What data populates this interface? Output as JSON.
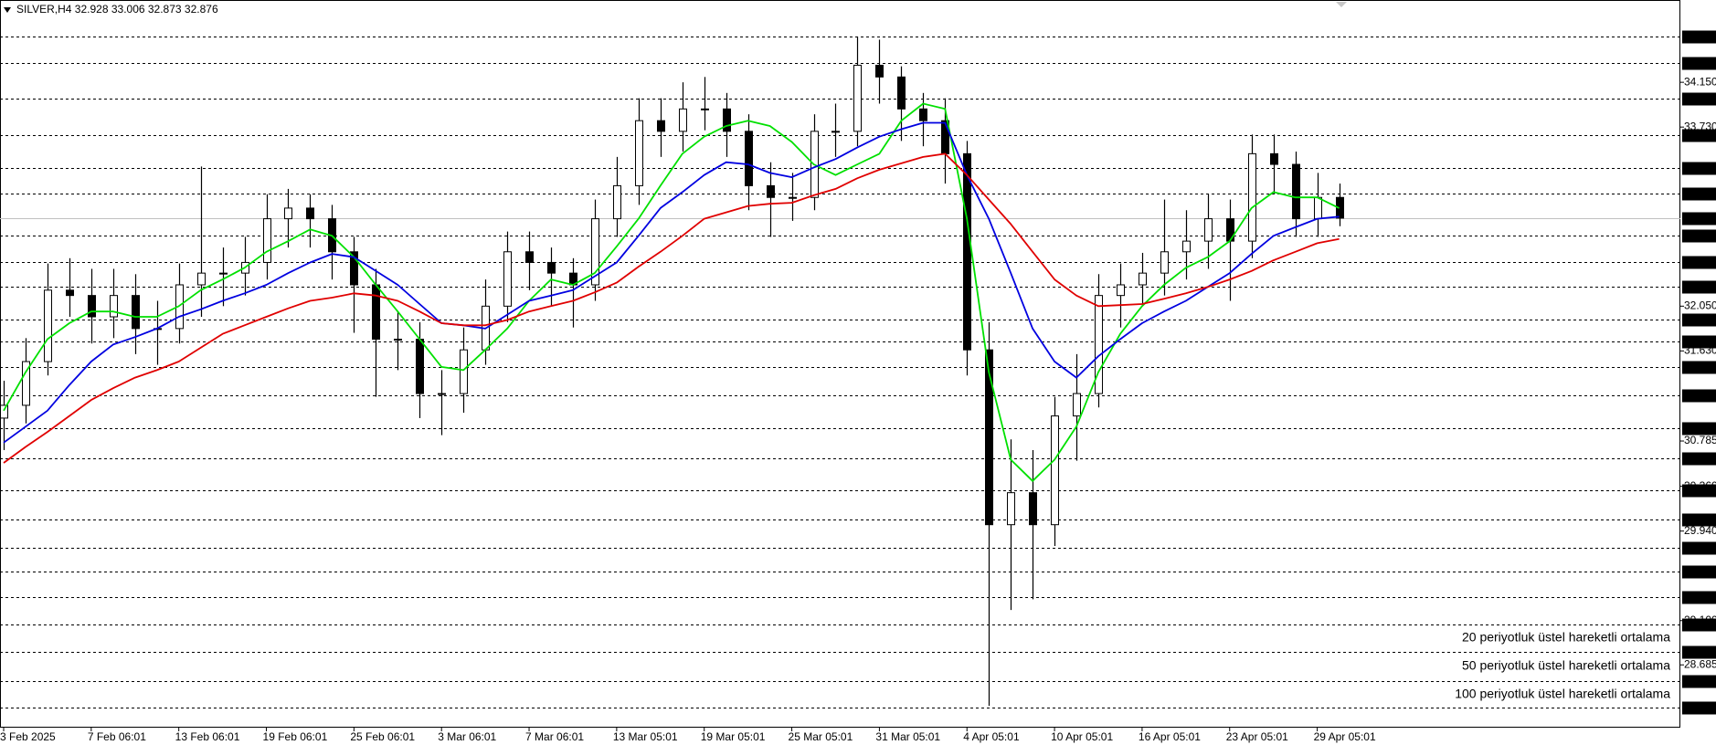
{
  "chart_data": {
    "type": "candlestick",
    "title": "SILVER,H4  32.928 33.006 32.873 32.876",
    "categories": [
      "3 Feb 2025",
      null,
      null,
      null,
      "7 Feb 06:01",
      null,
      null,
      null,
      "13 Feb 06:01",
      null,
      null,
      null,
      "19 Feb 06:01",
      null,
      null,
      null,
      "25 Feb 06:01",
      null,
      null,
      null,
      "3 Mar 06:01",
      null,
      null,
      null,
      "7 Mar 06:01",
      null,
      null,
      null,
      "13 Mar 05:01",
      null,
      null,
      null,
      "19 Mar 05:01",
      null,
      null,
      null,
      "25 Mar 05:01",
      null,
      null,
      null,
      "31 Mar 05:01",
      null,
      null,
      null,
      "4 Apr 05:01",
      null,
      null,
      null,
      "10 Apr 05:01",
      null,
      null,
      null,
      "16 Apr 05:01",
      null,
      null,
      null,
      "23 Apr 05:01",
      null,
      null,
      null,
      "29 Apr 05:01",
      null
    ],
    "candles": {
      "open": [
        31.0,
        31.12,
        31.53,
        32.2,
        32.15,
        31.95,
        32.15,
        31.84,
        31.84,
        32.25,
        32.36,
        32.36,
        32.46,
        32.87,
        32.97,
        32.87,
        32.56,
        32.25,
        31.74,
        31.74,
        31.23,
        31.23,
        31.64,
        32.05,
        32.56,
        32.46,
        32.36,
        32.25,
        32.87,
        33.18,
        33.79,
        33.69,
        33.9,
        33.9,
        33.69,
        33.18,
        33.07,
        33.07,
        33.69,
        33.69,
        34.31,
        34.2,
        33.9,
        33.79,
        33.48,
        31.64,
        30.0,
        30.3,
        30.0,
        31.02,
        31.23,
        32.15,
        32.25,
        32.36,
        32.56,
        32.66,
        32.87,
        32.66,
        33.48,
        33.38,
        32.87,
        33.07
      ],
      "high": [
        31.35,
        31.75,
        32.45,
        32.5,
        32.4,
        32.4,
        32.35,
        32.1,
        32.45,
        33.36,
        32.6,
        32.7,
        33.1,
        33.15,
        33.1,
        33.0,
        32.7,
        32.4,
        32.0,
        31.9,
        31.45,
        31.85,
        32.3,
        32.75,
        32.75,
        32.6,
        32.5,
        33.05,
        33.45,
        34.0,
        34.0,
        34.15,
        34.2,
        34.05,
        33.85,
        33.4,
        33.3,
        33.85,
        33.95,
        34.58,
        34.55,
        34.3,
        34.05,
        34.0,
        33.6,
        31.9,
        30.8,
        30.7,
        31.2,
        31.6,
        32.35,
        32.45,
        32.55,
        33.05,
        32.95,
        33.1,
        33.05,
        33.66,
        33.66,
        33.5,
        33.3,
        33.2
      ],
      "low": [
        30.7,
        30.95,
        31.4,
        31.95,
        31.7,
        31.75,
        31.6,
        31.5,
        31.7,
        31.95,
        32.05,
        32.15,
        32.3,
        32.6,
        32.6,
        32.3,
        31.8,
        31.2,
        31.45,
        31.0,
        30.84,
        31.05,
        31.5,
        31.9,
        32.2,
        32.05,
        31.85,
        32.1,
        32.7,
        33.0,
        33.45,
        33.5,
        33.7,
        33.45,
        32.95,
        32.7,
        32.85,
        32.95,
        33.45,
        33.55,
        33.95,
        33.6,
        33.55,
        33.2,
        31.4,
        28.3,
        29.2,
        29.3,
        29.8,
        30.6,
        31.1,
        31.85,
        32.05,
        32.15,
        32.3,
        32.4,
        32.1,
        32.5,
        33.1,
        32.7,
        32.7,
        32.8
      ],
      "close": [
        31.12,
        31.53,
        32.2,
        32.15,
        31.95,
        32.15,
        31.84,
        31.84,
        32.25,
        32.36,
        32.36,
        32.46,
        32.87,
        32.97,
        32.87,
        32.56,
        32.25,
        31.74,
        31.74,
        31.23,
        31.23,
        31.64,
        32.05,
        32.56,
        32.46,
        32.36,
        32.25,
        32.87,
        33.18,
        33.79,
        33.69,
        33.9,
        33.9,
        33.69,
        33.18,
        33.07,
        33.07,
        33.69,
        33.69,
        34.31,
        34.2,
        33.9,
        33.79,
        33.48,
        31.64,
        30.0,
        30.3,
        30.0,
        31.02,
        31.23,
        32.15,
        32.25,
        32.36,
        32.56,
        32.66,
        32.87,
        32.66,
        33.48,
        33.38,
        32.87,
        33.07,
        32.876
      ]
    },
    "series": [
      {
        "name": "20 periyotluk üstel hareketli ortalama",
        "color": "#00e000",
        "values": [
          31.07,
          31.43,
          31.74,
          31.89,
          32.0,
          32.0,
          31.95,
          31.95,
          32.05,
          32.2,
          32.3,
          32.41,
          32.56,
          32.66,
          32.77,
          32.71,
          32.51,
          32.25,
          32.0,
          31.74,
          31.48,
          31.45,
          31.64,
          31.84,
          32.1,
          32.3,
          32.25,
          32.36,
          32.61,
          32.87,
          33.18,
          33.48,
          33.64,
          33.74,
          33.79,
          33.74,
          33.59,
          33.38,
          33.28,
          33.38,
          33.48,
          33.79,
          33.95,
          33.9,
          32.87,
          31.43,
          30.61,
          30.41,
          30.61,
          30.92,
          31.43,
          31.79,
          32.05,
          32.25,
          32.41,
          32.51,
          32.66,
          32.97,
          33.12,
          33.07,
          33.07,
          32.97
        ]
      },
      {
        "name": "50 periyotluk üstel hareketli ortalama",
        "color": "#0000e0",
        "values": [
          30.77,
          30.92,
          31.07,
          31.31,
          31.53,
          31.69,
          31.76,
          31.84,
          31.95,
          32.02,
          32.1,
          32.17,
          32.25,
          32.36,
          32.46,
          32.54,
          32.51,
          32.38,
          32.25,
          32.07,
          31.89,
          31.87,
          31.84,
          31.97,
          32.1,
          32.15,
          32.2,
          32.33,
          32.46,
          32.71,
          32.97,
          33.12,
          33.28,
          33.4,
          33.38,
          33.3,
          33.26,
          33.35,
          33.43,
          33.54,
          33.64,
          33.71,
          33.77,
          33.77,
          33.28,
          32.87,
          32.36,
          31.84,
          31.53,
          31.38,
          31.58,
          31.74,
          31.89,
          32.0,
          32.1,
          32.23,
          32.36,
          32.54,
          32.71,
          32.79,
          32.87,
          32.89
        ]
      },
      {
        "name": "100 periyotluk üstel hareketli ortalama",
        "color": "#e00000",
        "values": [
          30.58,
          30.73,
          30.87,
          31.02,
          31.17,
          31.28,
          31.38,
          31.45,
          31.53,
          31.66,
          31.79,
          31.87,
          31.95,
          32.03,
          32.1,
          32.13,
          32.17,
          32.15,
          32.1,
          32.0,
          31.89,
          31.87,
          31.87,
          31.92,
          32.0,
          32.05,
          32.1,
          32.18,
          32.27,
          32.42,
          32.56,
          32.71,
          32.87,
          32.93,
          32.99,
          33.01,
          33.02,
          33.09,
          33.15,
          33.25,
          33.33,
          33.39,
          33.45,
          33.48,
          33.28,
          33.05,
          32.82,
          32.56,
          32.3,
          32.15,
          32.05,
          32.06,
          32.07,
          32.12,
          32.17,
          32.23,
          32.3,
          32.38,
          32.48,
          32.56,
          32.64,
          32.68
        ]
      }
    ],
    "ylim": [
      28.096,
      34.922
    ],
    "yticks": [
      {
        "value": 34.15,
        "label": "34.150"
      },
      {
        "value": 33.73,
        "label": "33.730"
      },
      {
        "value": 32.05,
        "label": "32.050"
      },
      {
        "value": 31.63,
        "label": "31.630"
      },
      30.785,
      {
        "value": 30.36,
        "label": "30.360"
      },
      {
        "value": 29.94,
        "label": "29.940"
      },
      {
        "value": 29.1,
        "label": "29.100"
      },
      28.685
    ],
    "levels": [
      34.583,
      34.333,
      {
        "value": 34,
        "label": "34.000"
      },
      33.655,
      {
        "value": 33.35,
        "label": "33.350"
      },
      {
        "value": 33.11,
        "label": "33.110"
      },
      32.713,
      {
        "value": 32.46,
        "label": "32.460"
      },
      32.233,
      31.925,
      31.723,
      31.475,
      {
        "value": 31.21,
        "label": "31.210"
      },
      30.903,
      30.619,
      30.319,
      {
        "value": 30.05,
        "label": "30.050"
      },
      {
        "value": 29.78,
        "label": "29.780"
      },
      {
        "value": 29.56,
        "label": "29.560"
      },
      29.317,
      {
        "value": 29.06,
        "label": "29.060"
      },
      28.811,
      {
        "value": 28.53,
        "label": "28.530"
      },
      28.281
    ],
    "current_price": 32.876,
    "grid": false
  }
}
